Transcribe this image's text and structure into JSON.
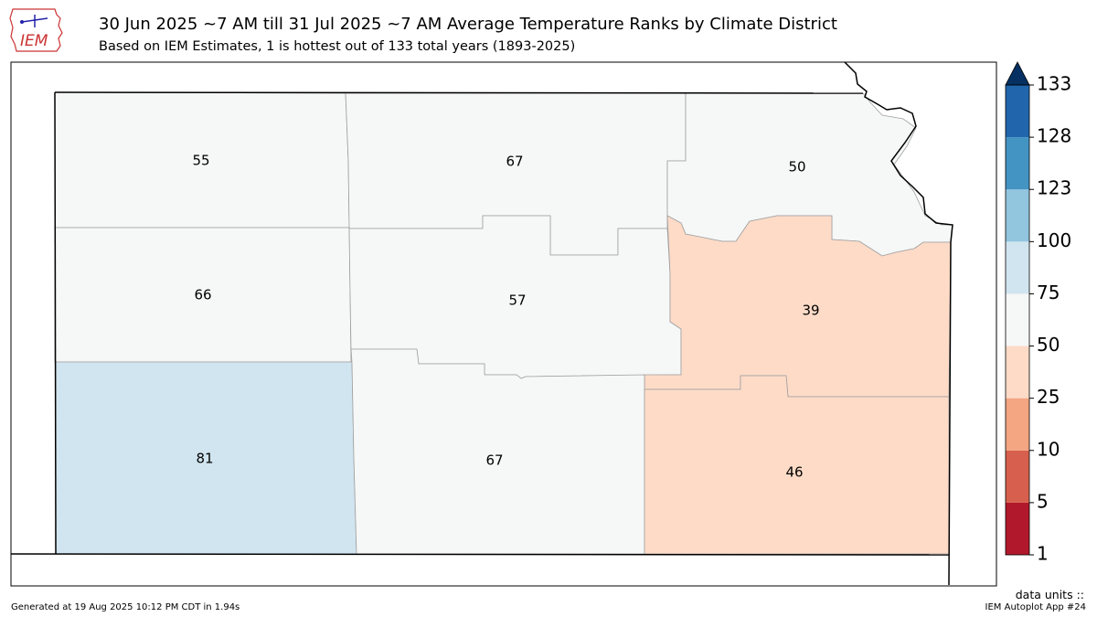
{
  "header": {
    "title": "30 Jun 2025 ~7 AM till 31 Jul 2025 ~7 AM Average Temperature Ranks by Climate District",
    "subtitle": "Based on IEM Estimates, 1 is hottest out of 133 total years (1893-2025)",
    "logo_text": "IEM"
  },
  "districts": [
    {
      "id": "northwest",
      "rank": "55",
      "color": "#f6f7f7"
    },
    {
      "id": "north-central",
      "rank": "67",
      "color": "#f6f7f7"
    },
    {
      "id": "northeast",
      "rank": "50",
      "color": "#f6f7f7"
    },
    {
      "id": "west-central",
      "rank": "66",
      "color": "#f6f7f7"
    },
    {
      "id": "central",
      "rank": "57",
      "color": "#f6f7f7"
    },
    {
      "id": "east-central",
      "rank": "39",
      "color": "#fddbc7"
    },
    {
      "id": "southwest",
      "rank": "81",
      "color": "#d1e5f0"
    },
    {
      "id": "south-central",
      "rank": "67",
      "color": "#f6f7f7"
    },
    {
      "id": "southeast",
      "rank": "46",
      "color": "#fddbc7"
    }
  ],
  "colorbar": {
    "ticks": [
      "1",
      "5",
      "10",
      "25",
      "50",
      "75",
      "100",
      "123",
      "128",
      "133"
    ],
    "colors": [
      "#b2182b",
      "#d6604d",
      "#f4a582",
      "#fddbc7",
      "#f6f7f7",
      "#d1e5f0",
      "#92c5de",
      "#4393c3",
      "#2166ac"
    ],
    "extend_color": "#053061"
  },
  "footer": {
    "units_label": "data units ::",
    "generated": "Generated at 19 Aug 2025 10:12 PM CDT in 1.94s",
    "app": "IEM Autoplot App #24"
  }
}
